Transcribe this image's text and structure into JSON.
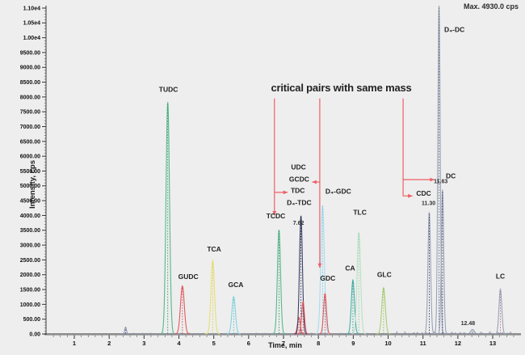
{
  "header": {
    "max_label": "Max. 4930.0 cps"
  },
  "chart_data": {
    "type": "line",
    "title": "",
    "xlabel": "Time, min",
    "ylabel": "Intensity, cps",
    "xlim": [
      0.2,
      13.72
    ],
    "ylim": [
      0,
      11000
    ],
    "grid": false,
    "legend": "none",
    "annotation_title": "critical pairs with same mass",
    "annotation_color": "#ee5f66",
    "x_ticks": [
      1,
      2,
      3,
      4,
      5,
      6,
      7,
      8,
      9,
      10,
      11,
      12,
      13
    ],
    "y_ticks": [
      {
        "v": 0,
        "label": "0.00"
      },
      {
        "v": 500,
        "label": "500.00"
      },
      {
        "v": 1000,
        "label": "1000.00"
      },
      {
        "v": 1500,
        "label": "1500.00"
      },
      {
        "v": 2000,
        "label": "2000.00"
      },
      {
        "v": 2500,
        "label": "2500.00"
      },
      {
        "v": 3000,
        "label": "3000.00"
      },
      {
        "v": 3500,
        "label": "3500.00"
      },
      {
        "v": 4000,
        "label": "4000.00"
      },
      {
        "v": 4500,
        "label": "4500.00"
      },
      {
        "v": 5000,
        "label": "5000.00"
      },
      {
        "v": 5500,
        "label": "5500.00"
      },
      {
        "v": 6000,
        "label": "6000.00"
      },
      {
        "v": 6500,
        "label": "6500.00"
      },
      {
        "v": 7000,
        "label": "7000.00"
      },
      {
        "v": 7500,
        "label": "7500.00"
      },
      {
        "v": 8000,
        "label": "8000.00"
      },
      {
        "v": 8500,
        "label": "8500.00"
      },
      {
        "v": 9000,
        "label": "9000.00"
      },
      {
        "v": 9500,
        "label": "9500.00"
      },
      {
        "v": 10000,
        "label": "1.00e4"
      },
      {
        "v": 10500,
        "label": "1.05e4"
      },
      {
        "v": 11000,
        "label": "1.10e4"
      }
    ],
    "peaks": [
      {
        "name": "baseline-blip",
        "rt": 2.47,
        "apex_cps": 230,
        "sigma": 0.025,
        "color": "#8d96aa",
        "dash": "#3a4270"
      },
      {
        "name": "TUDC",
        "rt": 3.68,
        "apex_cps": 7830,
        "sigma": 0.05,
        "color": "#56b98b",
        "dash": "#2f8f63"
      },
      {
        "name": "GUDC",
        "rt": 4.1,
        "apex_cps": 1620,
        "sigma": 0.055,
        "color": "#e2595e",
        "dash": "#c13f46"
      },
      {
        "name": "TCA",
        "rt": 4.97,
        "apex_cps": 2470,
        "sigma": 0.05,
        "color": "#e7e172",
        "dash": "#cfc94e"
      },
      {
        "name": "GCA",
        "rt": 5.57,
        "apex_cps": 1260,
        "sigma": 0.05,
        "color": "#84d2de",
        "dash": "#4fb4c6"
      },
      {
        "name": "TCDC",
        "rt": 6.87,
        "apex_cps": 3510,
        "sigma": 0.045,
        "color": "#56b98b",
        "dash": "#2f8f63"
      },
      {
        "name": "UDC",
        "rt": 7.44,
        "apex_cps": 560,
        "sigma": 0.04,
        "color": "#e2595e",
        "dash": "#c13f46"
      },
      {
        "name": "D4-TDC",
        "rt": 7.5,
        "apex_cps": 3990,
        "sigma": 0.042,
        "color": "#3c3f68",
        "dash": "#20233f"
      },
      {
        "name": "TDC",
        "rt": 7.56,
        "apex_cps": 1090,
        "sigma": 0.04,
        "color": "#e2595e",
        "dash": "#c13f46"
      },
      {
        "name": "D4-GDC",
        "rt": 8.12,
        "apex_cps": 4340,
        "sigma": 0.05,
        "color": "#a9dcee",
        "dash": "#6fc2dd"
      },
      {
        "name": "GDC",
        "rt": 8.19,
        "apex_cps": 1360,
        "sigma": 0.042,
        "color": "#e2595e",
        "dash": "#c13f46"
      },
      {
        "name": "CA",
        "rt": 8.99,
        "apex_cps": 1820,
        "sigma": 0.045,
        "color": "#46b1a7",
        "dash": "#2b8c84"
      },
      {
        "name": "TLC",
        "rt": 9.16,
        "apex_cps": 3430,
        "sigma": 0.05,
        "color": "#b8e1c4",
        "dash": "#8cc9a0"
      },
      {
        "name": "GLC",
        "rt": 9.87,
        "apex_cps": 1560,
        "sigma": 0.05,
        "color": "#aacf70",
        "dash": "#88b34e"
      },
      {
        "name": "CDC",
        "rt": 11.18,
        "apex_cps": 4110,
        "sigma": 0.038,
        "color": "#9aa3b6",
        "dash": "#2e3560"
      },
      {
        "name": "D4-DC",
        "rt": 11.46,
        "apex_cps": 11080,
        "sigma": 0.034,
        "color": "#9aa3b6",
        "dash": "#555a6e"
      },
      {
        "name": "DC",
        "rt": 11.56,
        "apex_cps": 4870,
        "sigma": 0.034,
        "color": "#9aa3b6",
        "dash": "#2e3560"
      },
      {
        "name": "bump-1248",
        "rt": 12.42,
        "apex_cps": 150,
        "sigma": 0.05,
        "color": "#8d96aa",
        "dash": null
      },
      {
        "name": "LC",
        "rt": 13.22,
        "apex_cps": 1510,
        "sigma": 0.04,
        "color": "#9aa3b6",
        "dash": "#c0618f"
      }
    ],
    "peak_labels": [
      {
        "text": "TUDC",
        "t": 3.7,
        "cps": 8180
      },
      {
        "text": "GUDC",
        "t": 4.27,
        "cps": 1860
      },
      {
        "text": "TCA",
        "t": 5.01,
        "cps": 2780
      },
      {
        "text": "GCA",
        "t": 5.63,
        "cps": 1580
      },
      {
        "text": "TCDC",
        "t": 6.78,
        "cps": 3910
      },
      {
        "text": "UDC",
        "t": 7.43,
        "cps": 5560
      },
      {
        "text": "GCDC",
        "t": 7.45,
        "cps": 5140
      },
      {
        "text": "TDC",
        "t": 7.41,
        "cps": 4760
      },
      {
        "text": "D₄-TDC",
        "t": 7.45,
        "cps": 4350
      },
      {
        "text": "D₄-GDC",
        "t": 8.57,
        "cps": 4740
      },
      {
        "text": "GDC",
        "t": 8.27,
        "cps": 1800
      },
      {
        "text": "CA",
        "t": 8.91,
        "cps": 2140
      },
      {
        "text": "TLC",
        "t": 9.19,
        "cps": 4030
      },
      {
        "text": "GLC",
        "t": 9.89,
        "cps": 1920
      },
      {
        "text": "CDC",
        "t": 11.02,
        "cps": 4670
      },
      {
        "text": "D₄-DC",
        "t": 11.9,
        "cps": 10200
      },
      {
        "text": "DC",
        "t": 11.8,
        "cps": 5260
      },
      {
        "text": "LC",
        "t": 13.22,
        "cps": 1870
      }
    ],
    "rt_labels": [
      {
        "text": "7.62",
        "t": 7.43,
        "cps": 3690
      },
      {
        "text": "11.30",
        "t": 11.16,
        "cps": 4350
      },
      {
        "text": "11.63",
        "t": 11.51,
        "cps": 5090
      },
      {
        "text": "12.48",
        "t": 12.29,
        "cps": 300
      }
    ],
    "critical_pair_links": [
      {
        "pair": "TCDC-TDC",
        "segments": [
          {
            "pts": [
              [
                6.74,
                7950
              ],
              [
                6.74,
                4000
              ]
            ],
            "arrow": true
          },
          {
            "pts": [
              [
                6.74,
                4780
              ],
              [
                7.12,
                4780
              ]
            ],
            "arrow": true
          }
        ]
      },
      {
        "pair": "GCDC-GDC",
        "segments": [
          {
            "pts": [
              [
                8.04,
                7950
              ],
              [
                8.04,
                2230
              ]
            ],
            "arrow": true
          },
          {
            "pts": [
              [
                8.04,
                5130
              ],
              [
                7.82,
                5130
              ]
            ],
            "arrow": true
          }
        ]
      },
      {
        "pair": "CDC-DC",
        "segments": [
          {
            "pts": [
              [
                10.43,
                7950
              ],
              [
                10.43,
                4660
              ],
              [
                10.7,
                4660
              ]
            ],
            "arrow": true
          },
          {
            "pts": [
              [
                10.43,
                5210
              ],
              [
                11.33,
                5210
              ]
            ],
            "arrow": true
          }
        ]
      }
    ]
  }
}
